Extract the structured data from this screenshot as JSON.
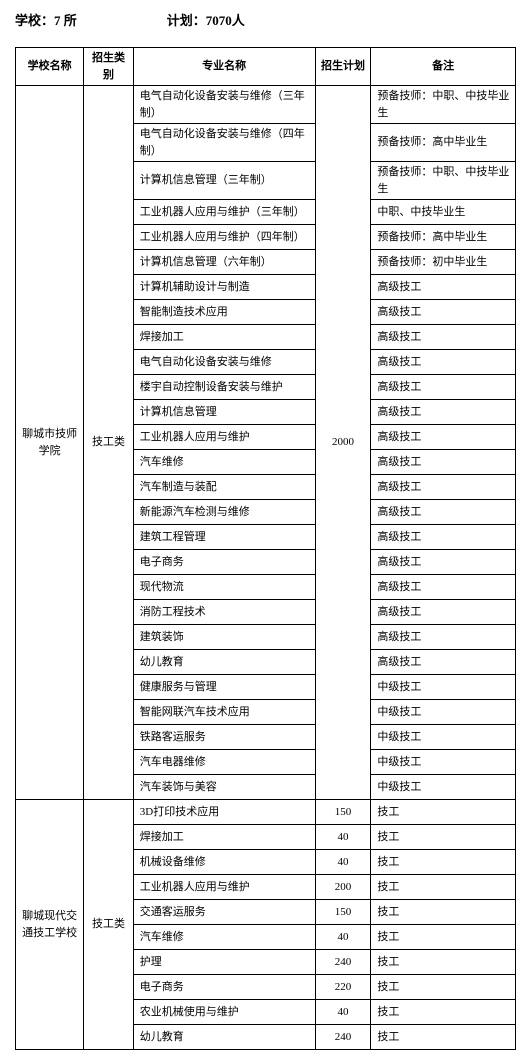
{
  "header": {
    "left": "学校：7 所",
    "right": "计划：7070人"
  },
  "columns": {
    "school": "学校名称",
    "cat": "招生类别",
    "major": "专业名称",
    "plan": "招生计划",
    "note": "备注"
  },
  "schools": [
    {
      "name": "聊城市技师学院",
      "cat": "技工类",
      "plan": "2000",
      "rows": [
        {
          "major": "电气自动化设备安装与维修（三年制）",
          "note": "预备技师：中职、中技毕业生"
        },
        {
          "major": "电气自动化设备安装与维修（四年制）",
          "note": "预备技师：高中毕业生"
        },
        {
          "major": "计算机信息管理（三年制）",
          "note": "预备技师：中职、中技毕业生"
        },
        {
          "major": "工业机器人应用与维护（三年制）",
          "note": "中职、中技毕业生"
        },
        {
          "major": "工业机器人应用与维护（四年制）",
          "note": "预备技师：高中毕业生"
        },
        {
          "major": "计算机信息管理（六年制）",
          "note": "预备技师：初中毕业生"
        },
        {
          "major": "计算机辅助设计与制造",
          "note": "高级技工"
        },
        {
          "major": "智能制造技术应用",
          "note": "高级技工"
        },
        {
          "major": "焊接加工",
          "note": "高级技工"
        },
        {
          "major": "电气自动化设备安装与维修",
          "note": "高级技工"
        },
        {
          "major": "楼宇自动控制设备安装与维护",
          "note": "高级技工"
        },
        {
          "major": "计算机信息管理",
          "note": "高级技工"
        },
        {
          "major": "工业机器人应用与维护",
          "note": "高级技工"
        },
        {
          "major": "汽车维修",
          "note": "高级技工"
        },
        {
          "major": "汽车制造与装配",
          "note": "高级技工"
        },
        {
          "major": "新能源汽车检测与维修",
          "note": "高级技工"
        },
        {
          "major": "建筑工程管理",
          "note": "高级技工"
        },
        {
          "major": "电子商务",
          "note": "高级技工"
        },
        {
          "major": "现代物流",
          "note": "高级技工"
        },
        {
          "major": "消防工程技术",
          "note": "高级技工"
        },
        {
          "major": "建筑装饰",
          "note": "高级技工"
        },
        {
          "major": "幼儿教育",
          "note": "高级技工"
        },
        {
          "major": "健康服务与管理",
          "note": "中级技工"
        },
        {
          "major": "智能网联汽车技术应用",
          "note": "中级技工"
        },
        {
          "major": "铁路客运服务",
          "note": "中级技工"
        },
        {
          "major": "汽车电器维修",
          "note": "中级技工"
        },
        {
          "major": "汽车装饰与美容",
          "note": "中级技工"
        }
      ]
    },
    {
      "name": "聊城现代交通技工学校",
      "cat": "技工类",
      "rows": [
        {
          "major": "3D打印技术应用",
          "plan": "150",
          "note": "技工"
        },
        {
          "major": "焊接加工",
          "plan": "40",
          "note": "技工"
        },
        {
          "major": "机械设备维修",
          "plan": "40",
          "note": "技工"
        },
        {
          "major": "工业机器人应用与维护",
          "plan": "200",
          "note": "技工"
        },
        {
          "major": "交通客运服务",
          "plan": "150",
          "note": "技工"
        },
        {
          "major": "汽车维修",
          "plan": "40",
          "note": "技工"
        },
        {
          "major": "护理",
          "plan": "240",
          "note": "技工"
        },
        {
          "major": "电子商务",
          "plan": "220",
          "note": "技工"
        },
        {
          "major": "农业机械使用与维护",
          "plan": "40",
          "note": "技工"
        },
        {
          "major": "幼儿教育",
          "plan": "240",
          "note": "技工"
        }
      ]
    }
  ]
}
